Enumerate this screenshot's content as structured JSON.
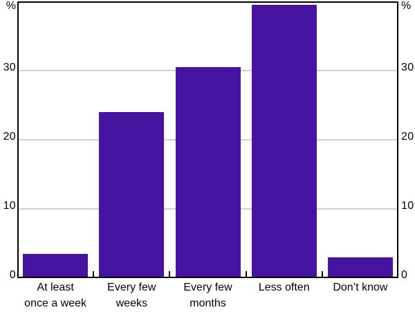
{
  "chart_data": {
    "type": "bar",
    "title": "",
    "xlabel": "",
    "ylabel": "%",
    "unit_left": "%",
    "unit_right": "%",
    "categories": [
      "At least once a week",
      "Every few weeks",
      "Every few months",
      "Less often",
      "Don’t know"
    ],
    "category_label_lines": [
      [
        "At least",
        "once a week"
      ],
      [
        "Every few",
        "weeks"
      ],
      [
        "Every few",
        "months"
      ],
      [
        "Less often"
      ],
      [
        "Don’t know"
      ]
    ],
    "values": [
      3.5,
      24,
      30.5,
      39.5,
      3
    ],
    "yticks": [
      0,
      10,
      20,
      30
    ],
    "ylim": [
      0,
      40
    ],
    "grid": true,
    "legend": false,
    "bar_color": "#4614A1",
    "gridline_color": "#D0D0D0",
    "axis_color": "#000000",
    "text_color": "#000000"
  }
}
